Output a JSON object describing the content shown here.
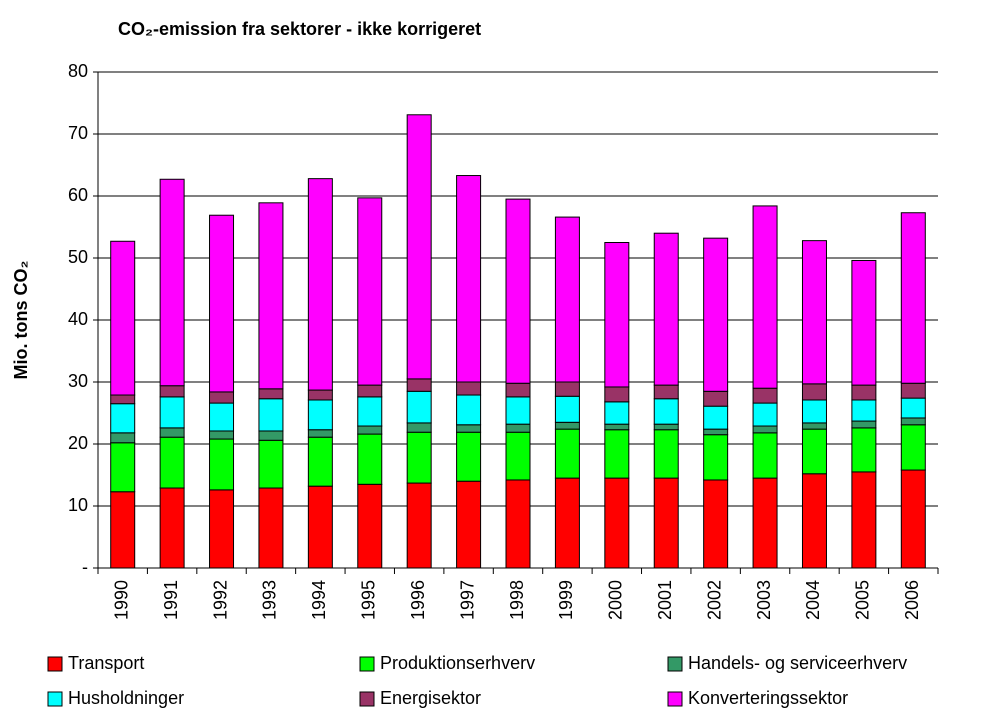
{
  "chart_data": {
    "type": "stacked_bar",
    "title": "CO₂-emission fra sektorer - ikke korrigeret",
    "y_label": "Mio. tons CO₂",
    "categories": [
      "1990",
      "1991",
      "1992",
      "1993",
      "1994",
      "1995",
      "1996",
      "1997",
      "1998",
      "1999",
      "2000",
      "2001",
      "2002",
      "2003",
      "2004",
      "2005",
      "2006"
    ],
    "series": [
      {
        "name": "Transport",
        "color": "#ff0000",
        "values": [
          12.3,
          12.9,
          12.6,
          12.9,
          13.2,
          13.5,
          13.7,
          14.0,
          14.2,
          14.5,
          14.5,
          14.5,
          14.2,
          14.5,
          15.2,
          15.5,
          15.8
        ]
      },
      {
        "name": "Produktionserhverv",
        "color": "#00ff00",
        "values": [
          7.9,
          8.2,
          8.2,
          7.7,
          7.9,
          8.1,
          8.2,
          7.9,
          7.7,
          7.9,
          7.8,
          7.8,
          7.3,
          7.3,
          7.2,
          7.1,
          7.3
        ]
      },
      {
        "name": "Handels- og serviceerhverv",
        "color": "#339966",
        "values": [
          1.6,
          1.5,
          1.3,
          1.5,
          1.2,
          1.3,
          1.5,
          1.2,
          1.3,
          1.1,
          0.9,
          0.9,
          0.9,
          1.1,
          1.0,
          1.1,
          1.1
        ]
      },
      {
        "name": "Husholdninger",
        "color": "#00ffff",
        "values": [
          4.7,
          5.0,
          4.5,
          5.2,
          4.8,
          4.7,
          5.1,
          4.8,
          4.4,
          4.2,
          3.6,
          4.1,
          3.7,
          3.7,
          3.7,
          3.4,
          3.2
        ]
      },
      {
        "name": "Energisektor",
        "color": "#993366",
        "values": [
          1.4,
          1.8,
          1.8,
          1.6,
          1.6,
          1.9,
          2.0,
          2.1,
          2.2,
          2.3,
          2.4,
          2.2,
          2.4,
          2.4,
          2.6,
          2.4,
          2.4
        ]
      },
      {
        "name": "Konverteringssektor",
        "color": "#ff00ff",
        "values": [
          24.8,
          33.3,
          28.5,
          30.0,
          34.1,
          30.2,
          42.6,
          33.3,
          29.7,
          26.6,
          23.3,
          24.5,
          24.7,
          29.4,
          23.1,
          20.1,
          27.5
        ]
      }
    ],
    "ylim": [
      0,
      80
    ],
    "yticks": [
      {
        "value": 0,
        "label": "-"
      },
      10,
      20,
      30,
      40,
      50,
      60,
      70,
      80
    ],
    "grid": true
  }
}
